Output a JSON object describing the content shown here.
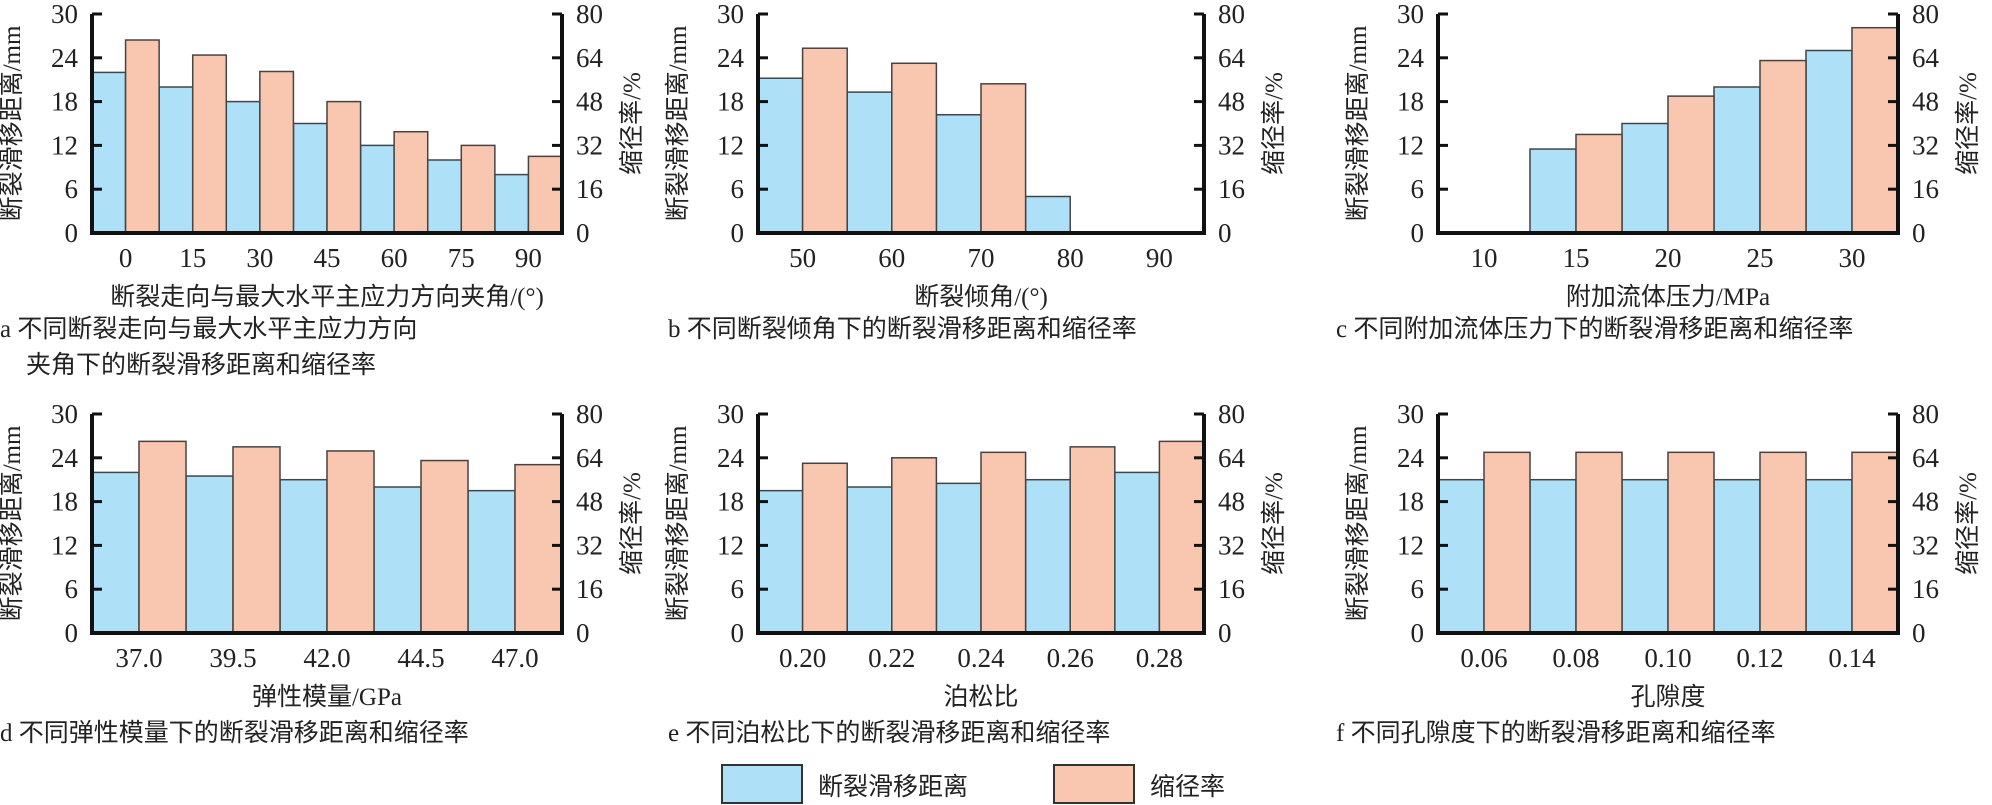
{
  "left_axis_label": "断裂滑移距离/mm",
  "right_axis_label": "缩径率/%",
  "legend": [
    {
      "label": "断裂滑移距离",
      "color": "#aee0f7"
    },
    {
      "label": "缩径率",
      "color": "#f9c6b0"
    }
  ],
  "chart_data": [
    {
      "type": "bar",
      "id": "a",
      "caption": [
        "a 不同断裂走向与最大水平主应力方向",
        "夹角下的断裂滑移距离和缩径率"
      ],
      "xlabel": "断裂走向与最大水平主应力方向夹角/(°)",
      "categories": [
        "0",
        "15",
        "30",
        "45",
        "60",
        "75",
        "90"
      ],
      "series": [
        {
          "name": "断裂滑移距离",
          "axis": "left",
          "values": [
            22,
            20,
            18,
            15,
            12,
            10,
            8
          ]
        },
        {
          "name": "缩径率",
          "axis": "right",
          "values": [
            70.5,
            65,
            59,
            48,
            37,
            32,
            28
          ]
        }
      ],
      "ylim_left": [
        0,
        30
      ],
      "yticks_left": [
        0,
        6,
        12,
        18,
        24,
        30
      ],
      "ylim_right": [
        0,
        80
      ],
      "yticks_right": [
        0,
        16,
        32,
        48,
        64,
        80
      ]
    },
    {
      "type": "bar",
      "id": "b",
      "caption": [
        "b 不同断裂倾角下的断裂滑移距离和缩径率"
      ],
      "xlabel": "断裂倾角/(°)",
      "categories": [
        "50",
        "60",
        "70",
        "80",
        "90"
      ],
      "series": [
        {
          "name": "断裂滑移距离",
          "axis": "left",
          "values": [
            21.2,
            19.3,
            16.2,
            5,
            0
          ]
        },
        {
          "name": "缩径率",
          "axis": "right",
          "values": [
            67.5,
            62,
            54.5,
            0,
            0
          ]
        }
      ],
      "ylim_left": [
        0,
        30
      ],
      "yticks_left": [
        0,
        6,
        12,
        18,
        24,
        30
      ],
      "ylim_right": [
        0,
        80
      ],
      "yticks_right": [
        0,
        16,
        32,
        48,
        64,
        80
      ]
    },
    {
      "type": "bar",
      "id": "c",
      "caption": [
        "c 不同附加流体压力下的断裂滑移距离和缩径率"
      ],
      "xlabel": "附加流体压力/MPa",
      "categories": [
        "10",
        "15",
        "20",
        "25",
        "30"
      ],
      "series": [
        {
          "name": "断裂滑移距离",
          "axis": "left",
          "values": [
            0,
            11.5,
            15,
            20,
            25
          ]
        },
        {
          "name": "缩径率",
          "axis": "right",
          "values": [
            0,
            36,
            50,
            63,
            75
          ]
        }
      ],
      "ylim_left": [
        0,
        30
      ],
      "yticks_left": [
        0,
        6,
        12,
        18,
        24,
        30
      ],
      "ylim_right": [
        0,
        80
      ],
      "yticks_right": [
        0,
        16,
        32,
        48,
        64,
        80
      ]
    },
    {
      "type": "bar",
      "id": "d",
      "caption": [
        "d 不同弹性模量下的断裂滑移距离和缩径率"
      ],
      "xlabel": "弹性模量/GPa",
      "categories": [
        "37.0",
        "39.5",
        "42.0",
        "44.5",
        "47.0"
      ],
      "series": [
        {
          "name": "断裂滑移距离",
          "axis": "left",
          "values": [
            22,
            21.5,
            21,
            20,
            19.5
          ]
        },
        {
          "name": "缩径率",
          "axis": "right",
          "values": [
            70,
            68,
            66.5,
            63,
            61.5
          ]
        }
      ],
      "ylim_left": [
        0,
        30
      ],
      "yticks_left": [
        0,
        6,
        12,
        18,
        24,
        30
      ],
      "ylim_right": [
        0,
        80
      ],
      "yticks_right": [
        0,
        16,
        32,
        48,
        64,
        80
      ]
    },
    {
      "type": "bar",
      "id": "e",
      "caption": [
        "e 不同泊松比下的断裂滑移距离和缩径率"
      ],
      "xlabel": "泊松比",
      "categories": [
        "0.20",
        "0.22",
        "0.24",
        "0.26",
        "0.28"
      ],
      "series": [
        {
          "name": "断裂滑移距离",
          "axis": "left",
          "values": [
            19.5,
            20,
            20.5,
            21,
            22
          ]
        },
        {
          "name": "缩径率",
          "axis": "right",
          "values": [
            62,
            64,
            66,
            68,
            70
          ]
        }
      ],
      "ylim_left": [
        0,
        30
      ],
      "yticks_left": [
        0,
        6,
        12,
        18,
        24,
        30
      ],
      "ylim_right": [
        0,
        80
      ],
      "yticks_right": [
        0,
        16,
        32,
        48,
        64,
        80
      ]
    },
    {
      "type": "bar",
      "id": "f",
      "caption": [
        "f 不同孔隙度下的断裂滑移距离和缩径率"
      ],
      "xlabel": "孔隙度",
      "categories": [
        "0.06",
        "0.08",
        "0.10",
        "0.12",
        "0.14"
      ],
      "series": [
        {
          "name": "断裂滑移距离",
          "axis": "left",
          "values": [
            21,
            21,
            21,
            21,
            21
          ]
        },
        {
          "name": "缩径率",
          "axis": "right",
          "values": [
            66,
            66,
            66,
            66,
            66
          ]
        }
      ],
      "ylim_left": [
        0,
        30
      ],
      "yticks_left": [
        0,
        6,
        12,
        18,
        24,
        30
      ],
      "ylim_right": [
        0,
        80
      ],
      "yticks_right": [
        0,
        16,
        32,
        48,
        64,
        80
      ]
    }
  ]
}
